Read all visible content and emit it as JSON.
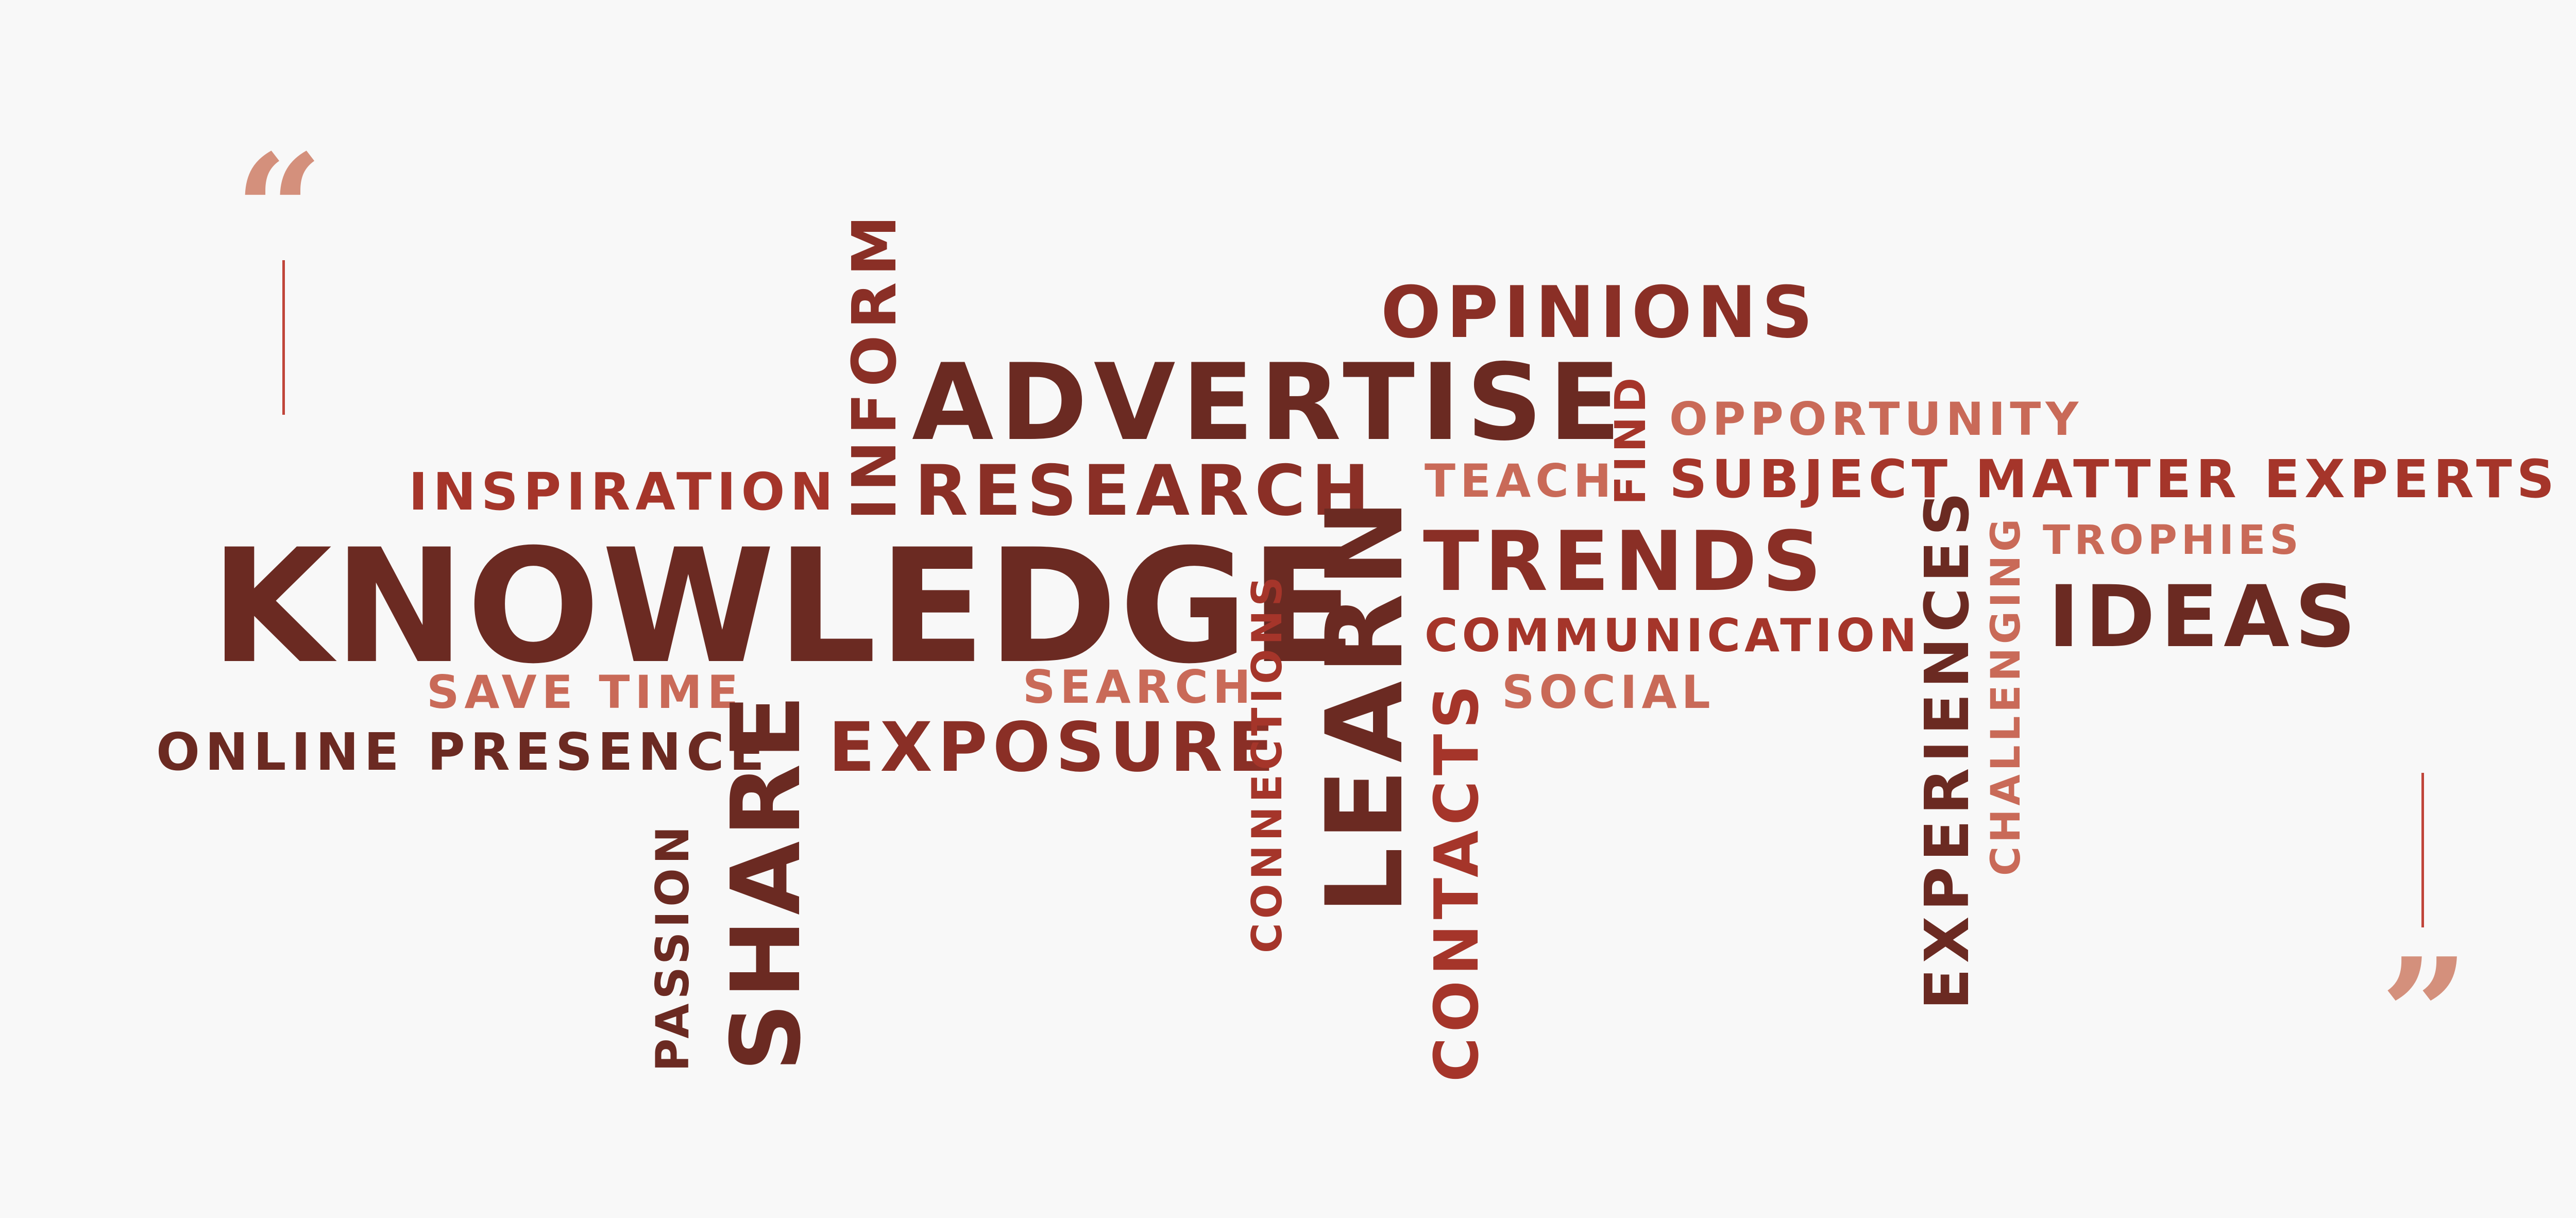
{
  "colors": {
    "background": "#f8f8f8",
    "dark": "#6b2a22",
    "medium": "#a5352a",
    "light": "#c96a58",
    "quote": "#d4907c",
    "line": "#c0453a"
  },
  "quotes": {
    "open": "“",
    "close": "”"
  },
  "words": {
    "knowledge": "KNOWLEDGE",
    "advertise": "ADVERTISE",
    "opinions": "OPINIONS",
    "inform": "INFORM",
    "research": "RESEARCH",
    "inspiration": "INSPIRATION",
    "save_time": "SAVE TIME",
    "online_presence": "ONLINE PRESENCE",
    "share": "SHARE",
    "passion": "PASSION",
    "exposure": "EXPOSURE",
    "search": "SEARCH",
    "connections": "CONNECTIONS",
    "learn": "LEARN",
    "contacts": "CONTACTS",
    "teach": "TEACH",
    "find": "FIND",
    "opportunity": "OPPORTUNITY",
    "subject_matter_experts": "SUBJECT MATTER EXPERTS",
    "trends": "TRENDS",
    "communication": "COMMUNICATION",
    "social": "SOCIAL",
    "experiences": "EXPERIENCES",
    "challenging": "CHALLENGING",
    "trophies": "TROPHIES",
    "ideas": "IDEAS"
  }
}
